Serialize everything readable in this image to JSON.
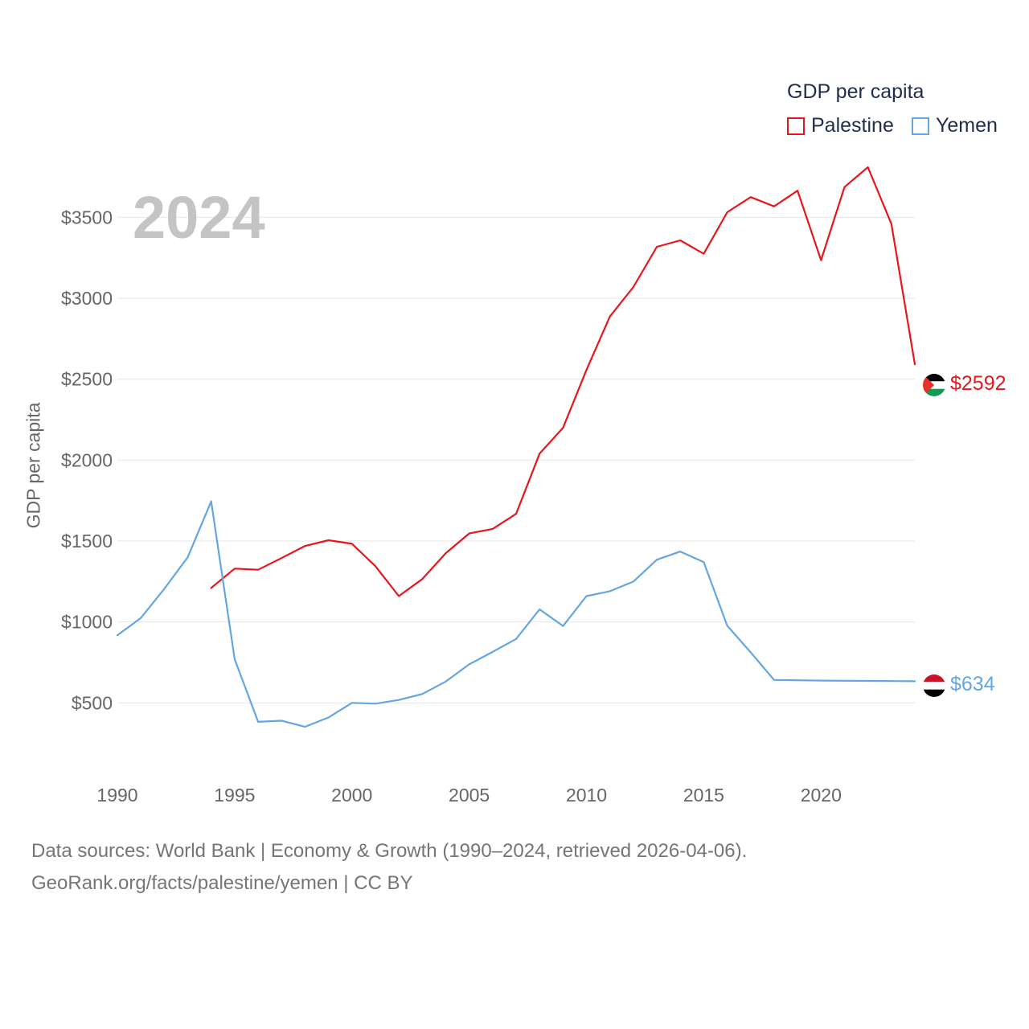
{
  "chart_data": {
    "type": "line",
    "year_label": "2024",
    "legend": {
      "title": "GDP per capita",
      "position": "top-right"
    },
    "ylabel": "GDP per capita",
    "xlim": [
      1990,
      2024
    ],
    "ylim": [
      0,
      3800
    ],
    "x_ticks": [
      1990,
      1995,
      2000,
      2005,
      2010,
      2015,
      2020
    ],
    "x_tick_labels": [
      "1990",
      "1995",
      "2000",
      "2005",
      "2010",
      "2015",
      "2020"
    ],
    "y_ticks": [
      500,
      1000,
      1500,
      2000,
      2500,
      3000,
      3500
    ],
    "y_tick_labels": [
      "$500",
      "$1000",
      "$1500",
      "$2000",
      "$2500",
      "$3000",
      "$3500"
    ],
    "grid": true,
    "series": [
      {
        "name": "Palestine",
        "color": "#e8151b",
        "end_label": "$2592",
        "end_icon": "palestine-flag-icon",
        "x": [
          1994,
          1995,
          1996,
          1997,
          1998,
          1999,
          2000,
          2001,
          2002,
          2003,
          2004,
          2005,
          2006,
          2007,
          2008,
          2009,
          2010,
          2011,
          2012,
          2013,
          2014,
          2015,
          2016,
          2017,
          2018,
          2019,
          2020,
          2021,
          2022,
          2023,
          2024
        ],
        "values": [
          1210,
          1330,
          1323,
          1395,
          1470,
          1505,
          1483,
          1345,
          1160,
          1265,
          1425,
          1547,
          1575,
          1668,
          2040,
          2200,
          2557,
          2888,
          3070,
          3318,
          3358,
          3275,
          3532,
          3625,
          3568,
          3665,
          3235,
          3687,
          3810,
          3460,
          2592
        ]
      },
      {
        "name": "Yemen",
        "color": "#63a6e3",
        "end_label": "$634",
        "end_icon": "yemen-flag-icon",
        "x": [
          1990,
          1991,
          1992,
          1993,
          1994,
          1995,
          1996,
          1997,
          1998,
          1999,
          2000,
          2001,
          2002,
          2003,
          2004,
          2005,
          2006,
          2007,
          2008,
          2009,
          2010,
          2011,
          2012,
          2013,
          2014,
          2015,
          2016,
          2017,
          2018,
          2019,
          2020,
          2021,
          2022,
          2023,
          2024
        ],
        "values": [
          918,
          1025,
          1205,
          1400,
          1745,
          770,
          383,
          390,
          352,
          410,
          500,
          495,
          518,
          555,
          632,
          738,
          815,
          895,
          1078,
          975,
          1160,
          1190,
          1250,
          1385,
          1435,
          1370,
          977,
          812,
          642,
          640,
          638,
          637,
          636,
          635,
          634
        ]
      }
    ]
  },
  "footer": {
    "line1": "Data sources: World Bank | Economy & Growth (1990–2024, retrieved 2026-04-06).",
    "line2": "GeoRank.org/facts/palestine/yemen | CC BY"
  }
}
